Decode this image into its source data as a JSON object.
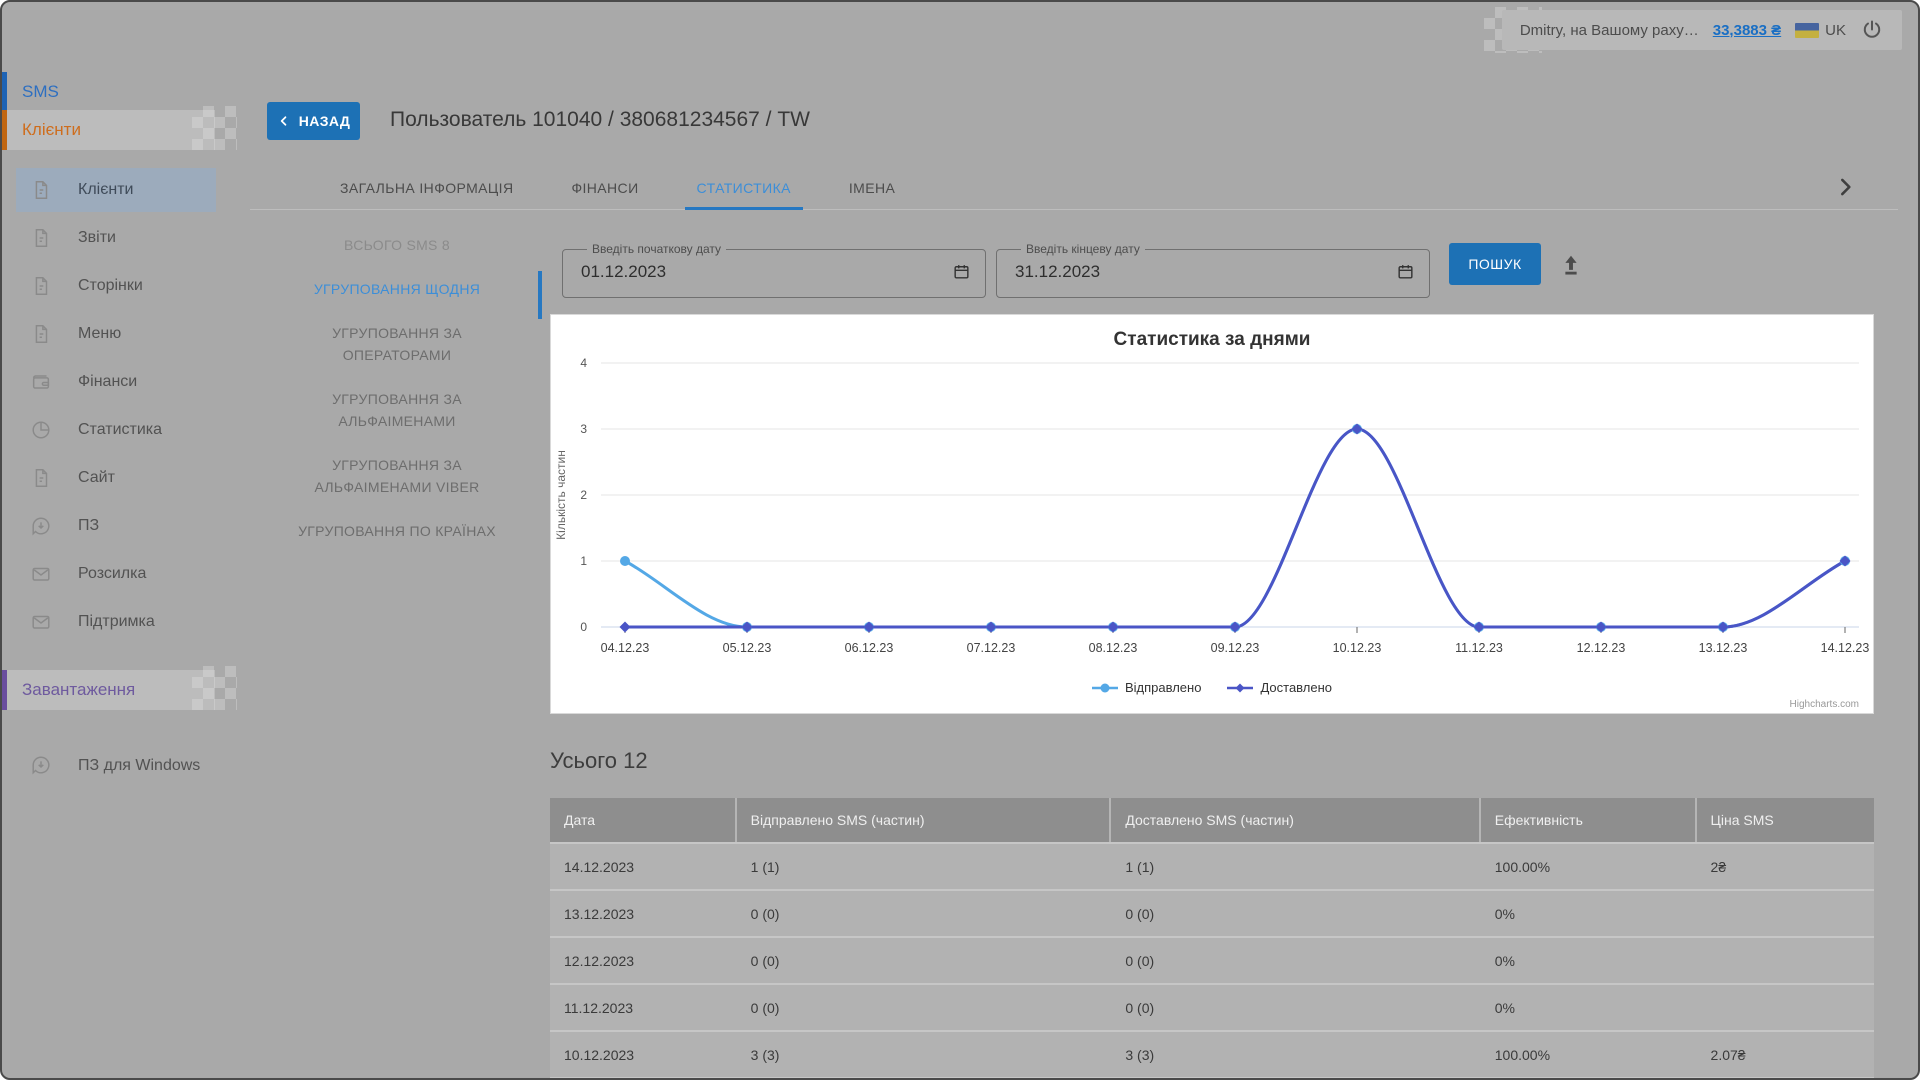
{
  "topbar": {
    "user_text": "Dmitry, на Вашому раху…",
    "balance": "33,3883 ₴",
    "language": "UK"
  },
  "sidebar": {
    "sections": [
      {
        "label": "SMS"
      },
      {
        "label": "Клієнти"
      },
      {
        "label": "Завантаження"
      }
    ],
    "items": [
      {
        "label": "Клієнти",
        "icon": "document",
        "active": true
      },
      {
        "label": "Звіти",
        "icon": "document"
      },
      {
        "label": "Сторінки",
        "icon": "document"
      },
      {
        "label": "Меню",
        "icon": "document"
      },
      {
        "label": "Фінанси",
        "icon": "wallet"
      },
      {
        "label": "Статистика",
        "icon": "pie-chart"
      },
      {
        "label": "Сайт",
        "icon": "document"
      },
      {
        "label": "ПЗ",
        "icon": "download-bubble"
      },
      {
        "label": "Розсилка",
        "icon": "envelope"
      },
      {
        "label": "Підтримка",
        "icon": "envelope"
      }
    ],
    "downloads_items": [
      {
        "label": "ПЗ для Windows",
        "icon": "download-bubble"
      }
    ]
  },
  "header": {
    "back_label": "НАЗАД",
    "title": "Пользователь 101040 / 380681234567 / TW"
  },
  "tabs": {
    "items": [
      "ЗАГАЛЬНА ІНФОРМАЦІЯ",
      "ФІНАНСИ",
      "СТАТИСТИКА",
      "ІМЕНА"
    ],
    "active": "СТАТИСТИКА"
  },
  "subnav": {
    "total": "ВСЬОГО SMS 8",
    "items": [
      "УГРУПОВАННЯ ЩОДНЯ",
      "УГРУПОВАННЯ ЗА ОПЕРАТОРАМИ",
      "УГРУПОВАННЯ ЗА АЛЬФАІМЕНАМИ",
      "УГРУПОВАННЯ ЗА АЛЬФАІМЕНАМИ VIBER",
      "УГРУПОВАННЯ ПО КРАЇНАХ"
    ],
    "active": "УГРУПОВАННЯ ЩОДНЯ"
  },
  "filters": {
    "start_label": "Введіть початкову дату",
    "start_value": "01.12.2023",
    "end_label": "Введіть кінцеву дату",
    "end_value": "31.12.2023",
    "search_label": "ПОШУК"
  },
  "chart_data": {
    "type": "line",
    "title": "Статистика за днями",
    "ylabel": "Кількість частин",
    "ylim": [
      0,
      4
    ],
    "yticks": [
      0,
      1,
      2,
      3,
      4
    ],
    "categories": [
      "04.12.23",
      "05.12.23",
      "06.12.23",
      "07.12.23",
      "08.12.23",
      "09.12.23",
      "10.12.23",
      "11.12.23",
      "12.12.23",
      "13.12.23",
      "14.12.23"
    ],
    "series": [
      {
        "name": "Відправлено",
        "color": "#54a8e6",
        "marker": "circle",
        "values": [
          1,
          0,
          0,
          0,
          0,
          0,
          3,
          0,
          0,
          0,
          1
        ]
      },
      {
        "name": "Доставлено",
        "color": "#4a55c6",
        "marker": "diamond",
        "values": [
          0,
          0,
          0,
          0,
          0,
          0,
          3,
          0,
          0,
          0,
          1
        ]
      }
    ],
    "grid": true,
    "legend_position": "bottom",
    "credit": "Highcharts.com"
  },
  "summary": {
    "total_label": "Усього 12"
  },
  "table": {
    "columns": [
      "Дата",
      "Відправлено SMS (частин)",
      "Доставлено SMS (частин)",
      "Ефективність",
      "Ціна SMS"
    ],
    "rows": [
      [
        "14.12.2023",
        "1 (1)",
        "1 (1)",
        "100.00%",
        "2₴"
      ],
      [
        "13.12.2023",
        "0 (0)",
        "0 (0)",
        "0%",
        ""
      ],
      [
        "12.12.2023",
        "0 (0)",
        "0 (0)",
        "0%",
        ""
      ],
      [
        "11.12.2023",
        "0 (0)",
        "0 (0)",
        "0%",
        ""
      ],
      [
        "10.12.2023",
        "3 (3)",
        "3 (3)",
        "100.00%",
        "2.07₴"
      ]
    ]
  },
  "colors": {
    "accent_blue": "#1d71b5",
    "active_tab_blue": "#3c8ed8",
    "sms_blue": "#2d6fc1",
    "clients_orange": "#ce6d1d",
    "downloads_purple": "#6e5a9e",
    "series_sent": "#54a8e6",
    "series_delivered": "#4a55c6"
  }
}
